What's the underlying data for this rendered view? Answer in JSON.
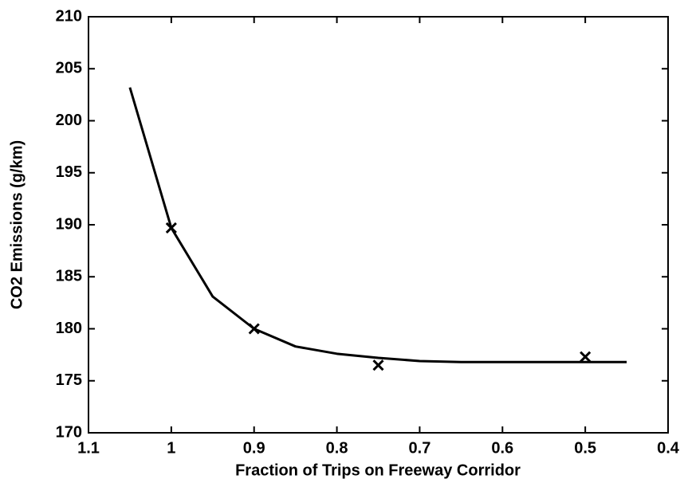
{
  "chart_data": {
    "type": "line",
    "x_label": "Fraction of Trips on Freeway Corridor",
    "y_label": "CO2 Emissions (g/km)",
    "xlim": [
      1.1,
      0.4
    ],
    "xticks": [
      1.1,
      1,
      0.9,
      0.8,
      0.7,
      0.6,
      0.5,
      0.4
    ],
    "ylim": [
      170,
      210
    ],
    "yticks": [
      170,
      175,
      180,
      185,
      190,
      195,
      200,
      205,
      210
    ],
    "series": [
      {
        "style": "line",
        "color": "#000000",
        "x": [
          1.05,
          1.0,
          0.95,
          0.9,
          0.85,
          0.8,
          0.75,
          0.7,
          0.65,
          0.6,
          0.55,
          0.5,
          0.45
        ],
        "values": [
          203.2,
          189.7,
          183.1,
          180.0,
          178.3,
          177.6,
          177.2,
          176.9,
          176.8,
          176.8,
          176.8,
          176.8,
          176.8
        ]
      },
      {
        "style": "marker",
        "color": "#000000",
        "x": [
          1.0,
          0.9,
          0.75,
          0.5
        ],
        "values": [
          189.7,
          180.0,
          176.5,
          177.3
        ]
      }
    ]
  }
}
